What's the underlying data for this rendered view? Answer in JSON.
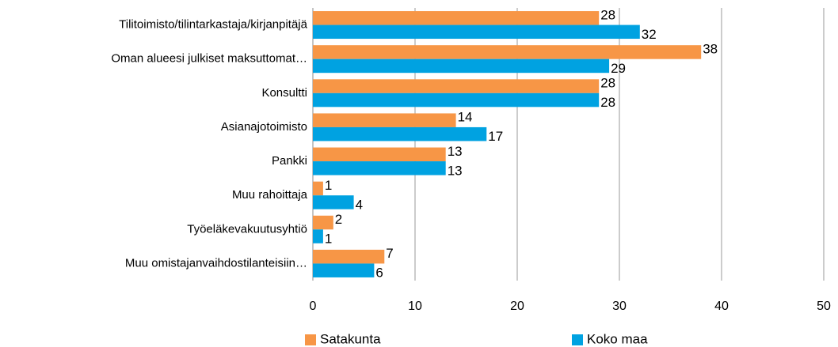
{
  "chart_data": {
    "type": "bar",
    "orientation": "horizontal",
    "categories": [
      "Tilitoimisto/tilintarkastaja/kirjanpitäjä",
      "Oman alueesi julkiset maksuttomat…",
      "Konsultti",
      "Asianajotoimisto",
      "Pankki",
      "Muu rahoittaja",
      "Työeläkevakuutusyhtiö",
      "Muu omistajanvaihdostilanteisiin…"
    ],
    "series": [
      {
        "name": "Satakunta",
        "color": "#f79646",
        "values": [
          28,
          38,
          28,
          14,
          13,
          1,
          2,
          7
        ]
      },
      {
        "name": "Koko maa",
        "color": "#00a2e1",
        "values": [
          32,
          29,
          28,
          17,
          13,
          4,
          1,
          6
        ]
      }
    ],
    "xlim": [
      0,
      50
    ],
    "xticks": [
      0,
      10,
      20,
      30,
      40,
      50
    ],
    "grid": true,
    "legend": "bottom"
  }
}
